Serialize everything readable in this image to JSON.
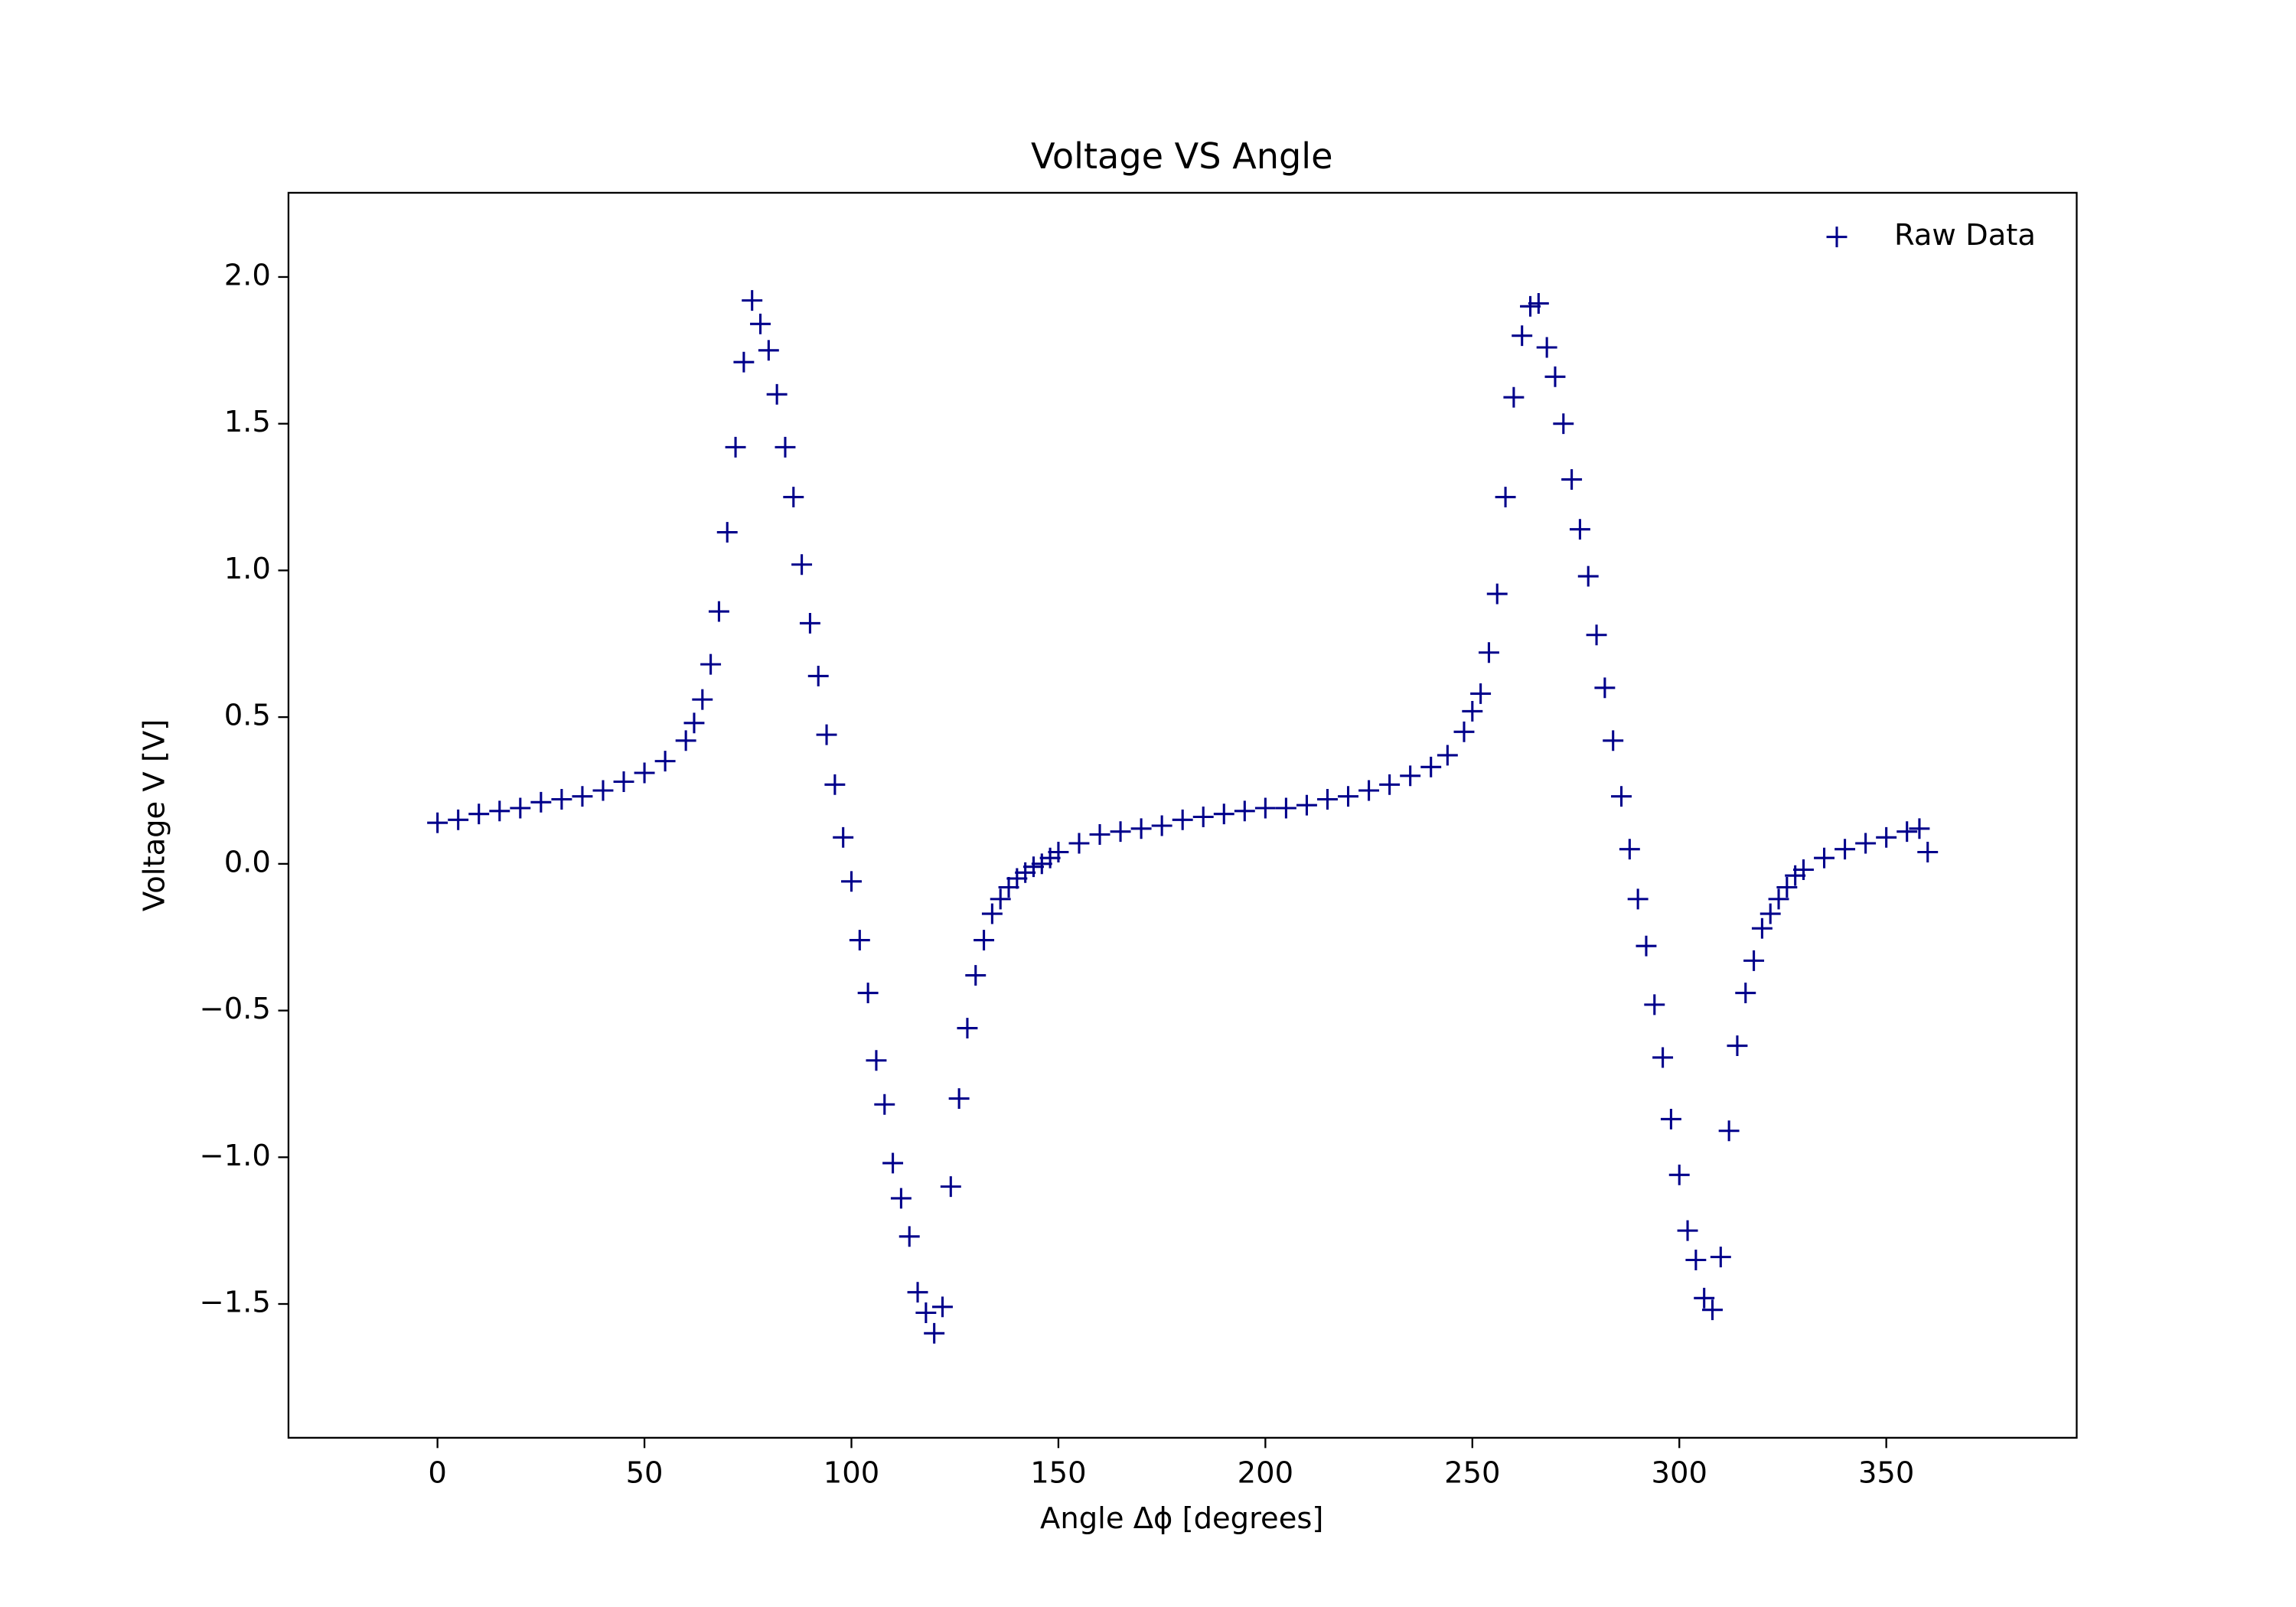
{
  "chart_data": {
    "type": "scatter",
    "title": "Voltage VS Angle",
    "x_label": "Angle Δϕ [degrees]",
    "y_label": "Voltage V [V]",
    "xlim": [
      -36,
      396
    ],
    "ylim": [
      -1.956,
      2.287
    ],
    "xticks": [
      0,
      50,
      100,
      150,
      200,
      250,
      300,
      350
    ],
    "yticks": [
      {
        "value": -1.5,
        "label": "−1.5"
      },
      {
        "value": -1.0,
        "label": "−1.0"
      },
      {
        "value": -0.5,
        "label": "−0.5"
      },
      {
        "value": 0,
        "label": "0.0"
      },
      0.5,
      {
        "value": 1.0,
        "label": "1.0"
      },
      1.5,
      {
        "value": 2.0,
        "label": "2.0"
      }
    ],
    "legend": "upper right",
    "marker": "+",
    "series": [
      {
        "name": "Raw Data",
        "color": "#00008b",
        "x": [
          0,
          5,
          10,
          15,
          20,
          25,
          30,
          35,
          40,
          45,
          50,
          55,
          60,
          62,
          64,
          66,
          68,
          70,
          72,
          74,
          76,
          78,
          80,
          82,
          84,
          86,
          88,
          90,
          92,
          94,
          96,
          98,
          100,
          102,
          104,
          106,
          108,
          110,
          112,
          114,
          116,
          118,
          120,
          122,
          124,
          126,
          128,
          130,
          132,
          134,
          136,
          138,
          140,
          142,
          144,
          146,
          148,
          150,
          155,
          160,
          165,
          170,
          175,
          180,
          185,
          190,
          195,
          200,
          205,
          210,
          215,
          220,
          225,
          230,
          235,
          240,
          244,
          248,
          250,
          252,
          254,
          256,
          258,
          260,
          262,
          264,
          266,
          268,
          270,
          272,
          274,
          276,
          278,
          280,
          282,
          284,
          286,
          288,
          290,
          292,
          294,
          296,
          298,
          300,
          302,
          304,
          306,
          308,
          310,
          312,
          314,
          316,
          318,
          320,
          322,
          324,
          326,
          328,
          330,
          335,
          340,
          345,
          350,
          355,
          358,
          360
        ],
        "values": [
          0.14,
          0.15,
          0.17,
          0.18,
          0.19,
          0.21,
          0.22,
          0.23,
          0.25,
          0.28,
          0.31,
          0.35,
          0.42,
          0.48,
          0.56,
          0.68,
          0.86,
          1.13,
          1.42,
          1.71,
          1.92,
          1.84,
          1.75,
          1.6,
          1.42,
          1.25,
          1.02,
          0.82,
          0.64,
          0.44,
          0.27,
          0.09,
          -0.06,
          -0.26,
          -0.44,
          -0.67,
          -0.82,
          -1.02,
          -1.14,
          -1.27,
          -1.46,
          -1.53,
          -1.6,
          -1.51,
          -1.1,
          -0.8,
          -0.56,
          -0.38,
          -0.26,
          -0.17,
          -0.12,
          -0.08,
          -0.05,
          -0.03,
          -0.01,
          0.0,
          0.02,
          0.04,
          0.07,
          0.1,
          0.11,
          0.12,
          0.13,
          0.15,
          0.16,
          0.17,
          0.18,
          0.19,
          0.19,
          0.2,
          0.22,
          0.23,
          0.25,
          0.27,
          0.3,
          0.33,
          0.37,
          0.45,
          0.52,
          0.58,
          0.72,
          0.92,
          1.25,
          1.59,
          1.8,
          1.9,
          1.91,
          1.76,
          1.66,
          1.5,
          1.31,
          1.14,
          0.98,
          0.78,
          0.6,
          0.42,
          0.23,
          0.05,
          -0.12,
          -0.28,
          -0.48,
          -0.66,
          -0.87,
          -1.06,
          -1.25,
          -1.35,
          -1.48,
          -1.52,
          -1.34,
          -0.91,
          -0.62,
          -0.44,
          -0.33,
          -0.22,
          -0.17,
          -0.12,
          -0.08,
          -0.04,
          -0.02,
          0.02,
          0.05,
          0.07,
          0.09,
          0.11,
          0.12,
          0.04
        ]
      }
    ]
  }
}
